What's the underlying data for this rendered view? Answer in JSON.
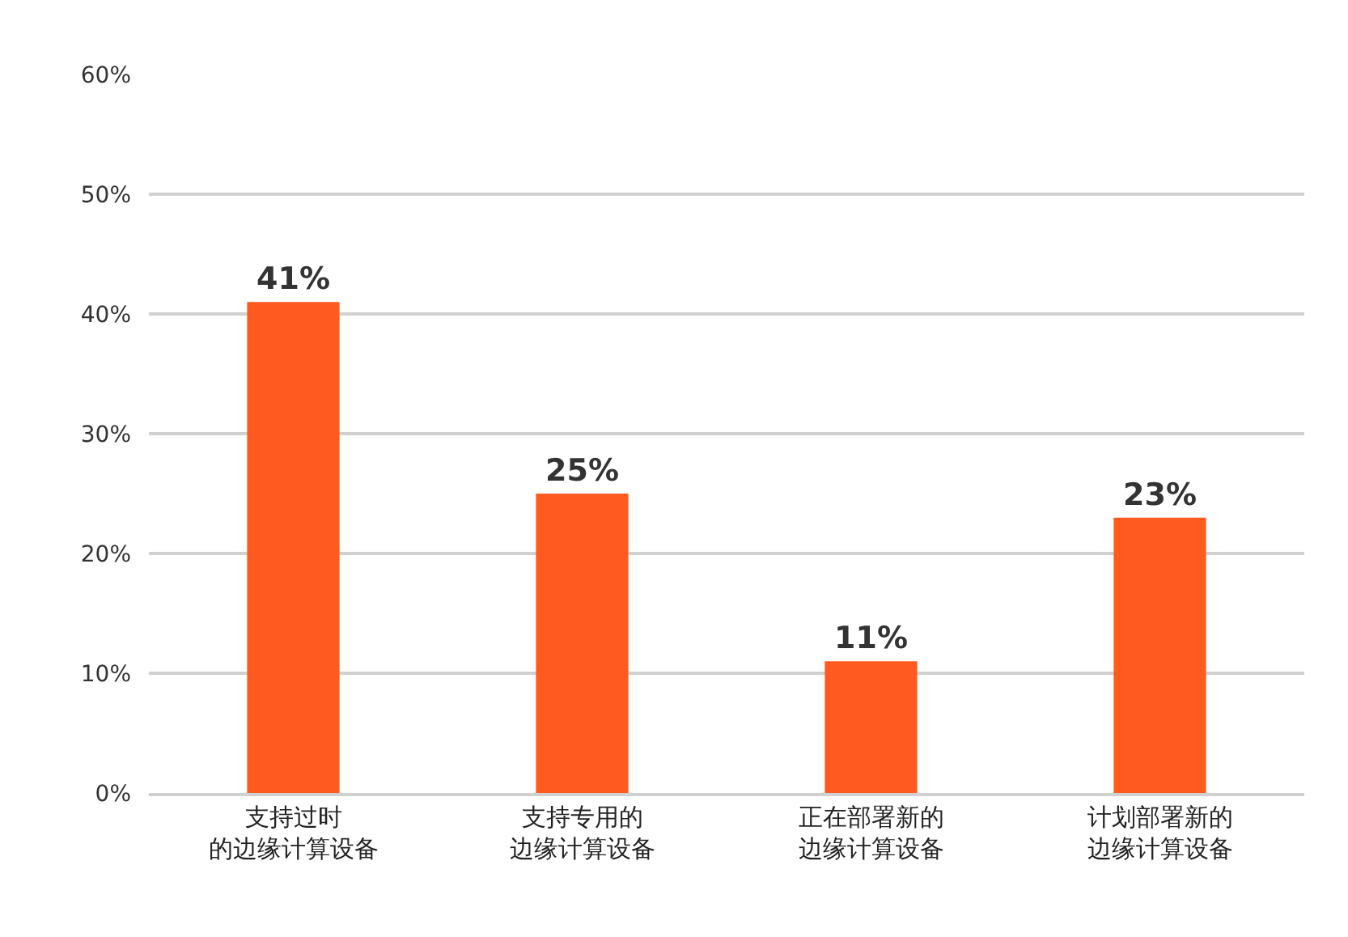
{
  "chart_data": {
    "type": "bar",
    "categories": [
      "支持过时的边缘计算设备",
      "支持专用的边缘计算设备",
      "正在部署新的边缘计算设备",
      "计划部署新的边缘计算设备"
    ],
    "values": [
      41,
      25,
      11,
      23
    ],
    "color": "#ff5a1f",
    "data_labels": true,
    "value_labels": [
      "41%",
      "25%",
      "11%",
      "23%"
    ],
    "ylim": [
      0,
      60
    ],
    "yticks": [
      {
        "value": 0,
        "label": "0%"
      },
      {
        "value": 10,
        "label": "10%"
      },
      {
        "value": 20,
        "label": "20%"
      },
      {
        "value": 30,
        "label": "30%"
      },
      {
        "value": 40,
        "label": "40%"
      },
      {
        "value": 50,
        "label": "50%"
      },
      {
        "value": 60,
        "label": "60%"
      }
    ],
    "grid": "y"
  }
}
